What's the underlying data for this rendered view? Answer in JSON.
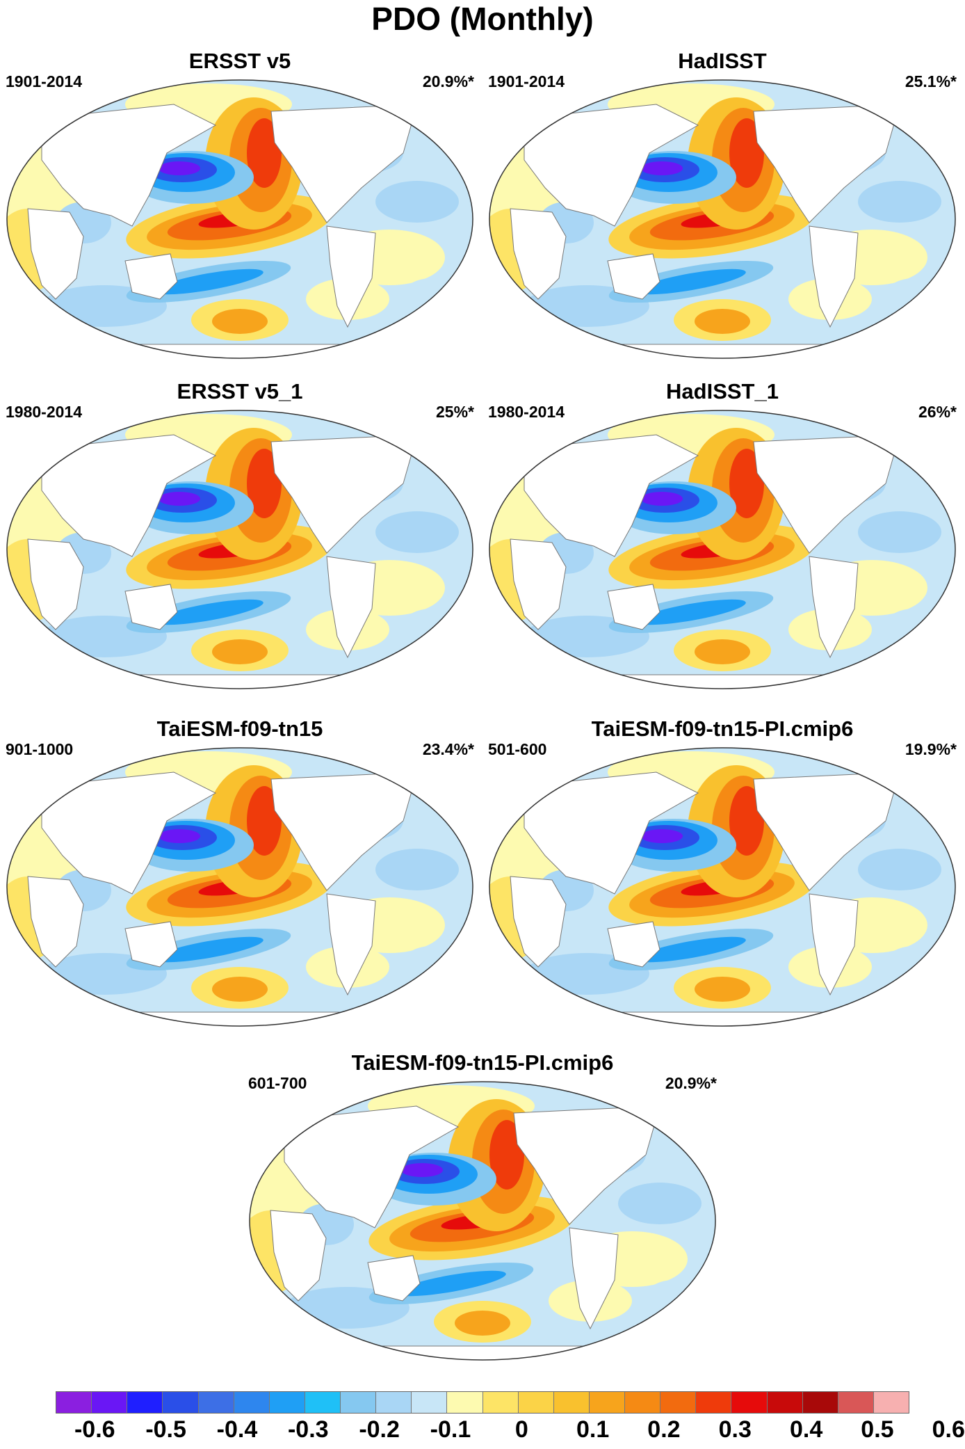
{
  "title": "PDO (Monthly)",
  "panels": [
    {
      "title": "ERSST v5",
      "period": "1901-2014",
      "pct": "20.9%*"
    },
    {
      "title": "HadISST",
      "period": "1901-2014",
      "pct": "25.1%*"
    },
    {
      "title": "ERSST v5_1",
      "period": "1980-2014",
      "pct": "25%*"
    },
    {
      "title": "HadISST_1",
      "period": "1980-2014",
      "pct": "26%*"
    },
    {
      "title": "TaiESM-f09-tn15",
      "period": "901-1000",
      "pct": "23.4%*"
    },
    {
      "title": "TaiESM-f09-tn15-PI.cmip6",
      "period": "501-600",
      "pct": "19.9%*"
    },
    {
      "title": "TaiESM-f09-tn15-PI.cmip6",
      "period": "601-700",
      "pct": "20.9%*"
    }
  ],
  "colorbar": {
    "colors": [
      "#8b1fe0",
      "#6a17f5",
      "#1f1fff",
      "#2a4fe8",
      "#3d6fe6",
      "#2e86ee",
      "#1f9ff5",
      "#1fc0f7",
      "#85c8f0",
      "#a9d6f5",
      "#c8e6f7",
      "#fdfab0",
      "#fde466",
      "#fbd347",
      "#f9c12e",
      "#f7a41c",
      "#f58a14",
      "#f26b0f",
      "#ef3b0b",
      "#e60b0b",
      "#c80a0a",
      "#a80909",
      "#d95757",
      "#f7b0b0"
    ],
    "labels": [
      "-0.6",
      "-0.5",
      "-0.4",
      "-0.3",
      "-0.2",
      "-0.1",
      "0",
      "0.1",
      "0.2",
      "0.3",
      "0.4",
      "0.5",
      "0.6"
    ]
  },
  "chart_data": {
    "type": "heatmap",
    "title": "PDO (Monthly)",
    "levels": [
      -0.65,
      -0.6,
      -0.55,
      -0.5,
      -0.45,
      -0.4,
      -0.35,
      -0.3,
      -0.25,
      -0.2,
      -0.15,
      -0.1,
      -0.05,
      0,
      0.05,
      0.1,
      0.15,
      0.2,
      0.25,
      0.3,
      0.35,
      0.4,
      0.45,
      0.5,
      0.55,
      0.6,
      0.65
    ],
    "panels": [
      {
        "name": "ERSST v5",
        "period": "1901-2014",
        "explained_variance": "20.9%*"
      },
      {
        "name": "HadISST",
        "period": "1901-2014",
        "explained_variance": "25.1%*"
      },
      {
        "name": "ERSST v5_1",
        "period": "1980-2014",
        "explained_variance": "25%*"
      },
      {
        "name": "HadISST_1",
        "period": "1980-2014",
        "explained_variance": "26%*"
      },
      {
        "name": "TaiESM-f09-tn15",
        "period": "901-1000",
        "explained_variance": "23.4%*"
      },
      {
        "name": "TaiESM-f09-tn15-PI.cmip6",
        "period": "501-600",
        "explained_variance": "19.9%*"
      },
      {
        "name": "TaiESM-f09-tn15-PI.cmip6",
        "period": "601-700",
        "explained_variance": "20.9%*"
      }
    ]
  }
}
